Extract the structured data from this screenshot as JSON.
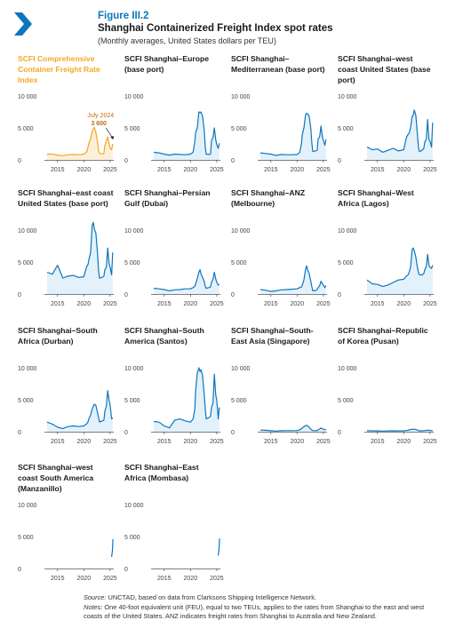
{
  "figure": {
    "label": "Figure III.2",
    "title": "Shanghai Containerized Freight Index spot rates",
    "subtitle": "(Monthly averages, United States dollars per TEU)"
  },
  "colors": {
    "accent": "#0e76bc",
    "highlight": "#f5a623",
    "annotation": "#c8671a",
    "fill": "#e3f1fa",
    "axis": "#555555"
  },
  "chart_data": [
    {
      "type": "area",
      "title_lines": [
        "SCFI Comprehensive",
        "Container Freight Rate",
        "Index"
      ],
      "highlight": true,
      "x": [
        2013,
        2014,
        2015,
        2016,
        2017,
        2018,
        2019,
        2020,
        2020.5,
        2020.83,
        2021,
        2021.3,
        2021.6,
        2021.83,
        2022,
        2022.3,
        2022.6,
        2022.83,
        2023,
        2023.5,
        2023.83,
        2024,
        2024.3,
        2024.55,
        2024.8,
        2025,
        2025.3,
        2025.5
      ],
      "y": [
        900,
        900,
        750,
        650,
        800,
        850,
        800,
        900,
        1200,
        2100,
        2700,
        3300,
        4500,
        4900,
        5100,
        4300,
        2800,
        1400,
        1000,
        950,
        1000,
        2200,
        3000,
        3600,
        2500,
        1800,
        1600,
        2500
      ],
      "xticks": [
        "2015",
        "2020",
        "2025"
      ],
      "xtick_values": [
        2015,
        2020,
        2025
      ],
      "yticks": [
        "0",
        "5 000",
        "10 000"
      ],
      "ytick_values": [
        0,
        5000,
        10000
      ],
      "ylim": [
        0,
        10000
      ],
      "xlim": [
        2012.5,
        2025.7
      ],
      "annotation": {
        "label": "July 2024",
        "value": "3 600",
        "x": 2024.55,
        "y": 3600
      }
    },
    {
      "type": "area",
      "title_lines": [
        "SCFI Shanghai–Europe",
        "(base port)"
      ],
      "x": [
        2013,
        2014,
        2015,
        2016,
        2017,
        2018,
        2019,
        2020,
        2020.5,
        2020.83,
        2021,
        2021.3,
        2021.6,
        2021.83,
        2022,
        2022.3,
        2022.6,
        2022.83,
        2023,
        2023.5,
        2023.83,
        2024,
        2024.3,
        2024.55,
        2024.8,
        2025,
        2025.3,
        2025.5
      ],
      "y": [
        1200,
        1100,
        900,
        750,
        900,
        850,
        800,
        900,
        1200,
        2800,
        4300,
        5000,
        7500,
        7400,
        7500,
        6800,
        4800,
        2000,
        900,
        850,
        900,
        3000,
        3500,
        5000,
        3200,
        2400,
        1800,
        2600
      ],
      "xticks": [
        "2015",
        "2020",
        "2025"
      ],
      "xtick_values": [
        2015,
        2020,
        2025
      ],
      "yticks": [
        "0",
        "5 000",
        "10 000"
      ],
      "ytick_values": [
        0,
        5000,
        10000
      ],
      "ylim": [
        0,
        10000
      ],
      "xlim": [
        2012.5,
        2025.7
      ]
    },
    {
      "type": "area",
      "title_lines": [
        "SCFI Shanghai–",
        "Mediterranean (base port)"
      ],
      "x": [
        2013,
        2014,
        2015,
        2016,
        2017,
        2018,
        2019,
        2020,
        2020.5,
        2020.83,
        2021,
        2021.3,
        2021.6,
        2021.83,
        2022,
        2022.3,
        2022.6,
        2022.83,
        2023,
        2023.5,
        2023.83,
        2024,
        2024.3,
        2024.55,
        2024.8,
        2025,
        2025.3,
        2025.5
      ],
      "y": [
        1100,
        1000,
        900,
        700,
        850,
        800,
        800,
        850,
        1200,
        2500,
        4000,
        5000,
        7000,
        7300,
        7200,
        6800,
        5000,
        2500,
        1300,
        1400,
        1500,
        3300,
        3600,
        5300,
        3700,
        3000,
        2300,
        3200
      ],
      "xticks": [
        "2015",
        "2020",
        "2025"
      ],
      "xtick_values": [
        2015,
        2020,
        2025
      ],
      "yticks": [
        "0",
        "5 000",
        "10 000"
      ],
      "ytick_values": [
        0,
        5000,
        10000
      ],
      "ylim": [
        0,
        10000
      ],
      "xlim": [
        2012.5,
        2025.7
      ]
    },
    {
      "type": "area",
      "title_lines": [
        "SCFI Shanghai–west",
        "coast United States (base",
        "port)"
      ],
      "x": [
        2013,
        2014,
        2015,
        2016,
        2017,
        2018,
        2019,
        2020,
        2020.5,
        2020.83,
        2021,
        2021.3,
        2021.6,
        2021.83,
        2022,
        2022.3,
        2022.6,
        2022.83,
        2023,
        2023.5,
        2023.83,
        2024,
        2024.3,
        2024.55,
        2024.8,
        2025,
        2025.3,
        2025.5
      ],
      "y": [
        2000,
        1600,
        1700,
        1200,
        1500,
        1800,
        1400,
        1600,
        3500,
        4000,
        4100,
        5000,
        6800,
        7000,
        7800,
        7000,
        4000,
        1800,
        1300,
        1500,
        1800,
        2800,
        3200,
        6300,
        3200,
        2900,
        2000,
        5800
      ],
      "xticks": [
        "2015",
        "2020",
        "2025"
      ],
      "xtick_values": [
        2015,
        2020,
        2025
      ],
      "yticks": [
        "0",
        "5 000",
        "10 000"
      ],
      "ytick_values": [
        0,
        5000,
        10000
      ],
      "ylim": [
        0,
        10000
      ],
      "xlim": [
        2012.5,
        2025.7
      ]
    },
    {
      "type": "area",
      "title_lines": [
        "SCFI Shanghai–east coast",
        "United States (base port)"
      ],
      "x": [
        2013,
        2014,
        2015,
        2016,
        2017,
        2018,
        2019,
        2020,
        2020.5,
        2020.83,
        2021,
        2021.3,
        2021.6,
        2021.83,
        2022,
        2022.3,
        2022.6,
        2022.83,
        2023,
        2023.5,
        2023.83,
        2024,
        2024.3,
        2024.55,
        2024.8,
        2025,
        2025.3,
        2025.5
      ],
      "y": [
        3400,
        3100,
        4500,
        2500,
        2800,
        2900,
        2600,
        2700,
        4200,
        4700,
        5500,
        6500,
        10800,
        11200,
        10200,
        9500,
        6500,
        3500,
        2500,
        2600,
        2800,
        3800,
        4200,
        7200,
        4800,
        4200,
        3000,
        6500
      ],
      "xticks": [
        "2015",
        "2020",
        "2025"
      ],
      "xtick_values": [
        2015,
        2020,
        2025
      ],
      "yticks": [
        "0",
        "5 000",
        "10 000"
      ],
      "ytick_values": [
        0,
        5000,
        10000
      ],
      "ylim": [
        0,
        10000
      ],
      "xlim": [
        2012.5,
        2025.7
      ]
    },
    {
      "type": "area",
      "title_lines": [
        "SCFI Shanghai–Persian",
        "Gulf (Dubai)"
      ],
      "x": [
        2013,
        2014,
        2015,
        2016,
        2017,
        2018,
        2019,
        2020,
        2020.5,
        2020.83,
        2021,
        2021.3,
        2021.6,
        2021.83,
        2022,
        2022.3,
        2022.6,
        2022.83,
        2023,
        2023.5,
        2023.83,
        2024,
        2024.3,
        2024.55,
        2024.8,
        2025,
        2025.3,
        2025.5
      ],
      "y": [
        900,
        800,
        700,
        500,
        650,
        700,
        800,
        800,
        1000,
        1200,
        1600,
        2400,
        3400,
        3800,
        3200,
        2600,
        2000,
        1200,
        900,
        1000,
        1100,
        1800,
        2300,
        3400,
        2400,
        1800,
        1400,
        1500
      ],
      "xticks": [
        "2015",
        "2020",
        "2025"
      ],
      "xtick_values": [
        2015,
        2020,
        2025
      ],
      "yticks": [
        "0",
        "5 000",
        "10 000"
      ],
      "ytick_values": [
        0,
        5000,
        10000
      ],
      "ylim": [
        0,
        10000
      ],
      "xlim": [
        2012.5,
        2025.7
      ]
    },
    {
      "type": "area",
      "title_lines": [
        "SCFI Shanghai–ANZ",
        "(Melbourne)"
      ],
      "x": [
        2013,
        2014,
        2015,
        2016,
        2017,
        2018,
        2019,
        2020,
        2020.5,
        2020.83,
        2021,
        2021.3,
        2021.6,
        2021.83,
        2022,
        2022.3,
        2022.6,
        2022.83,
        2023,
        2023.5,
        2023.83,
        2024,
        2024.3,
        2024.55,
        2024.8,
        2025,
        2025.3,
        2025.5
      ],
      "y": [
        700,
        600,
        400,
        500,
        650,
        700,
        750,
        800,
        1000,
        1100,
        1400,
        2200,
        3800,
        4400,
        3800,
        3200,
        2000,
        1100,
        500,
        550,
        700,
        1000,
        1300,
        2000,
        1600,
        1400,
        1000,
        1300
      ],
      "xticks": [
        "2015",
        "2020",
        "2025"
      ],
      "xtick_values": [
        2015,
        2020,
        2025
      ],
      "yticks": [
        "0",
        "5 000",
        "10 000"
      ],
      "ytick_values": [
        0,
        5000,
        10000
      ],
      "ylim": [
        0,
        10000
      ],
      "xlim": [
        2012.5,
        2025.7
      ]
    },
    {
      "type": "area",
      "title_lines": [
        "SCFI Shanghai–West",
        "Africa (Lagos)"
      ],
      "x": [
        2013,
        2014,
        2015,
        2016,
        2017,
        2018,
        2019,
        2020,
        2020.5,
        2020.83,
        2021,
        2021.3,
        2021.6,
        2021.83,
        2022,
        2022.3,
        2022.6,
        2022.83,
        2023,
        2023.5,
        2023.83,
        2024,
        2024.3,
        2024.55,
        2024.8,
        2025,
        2025.3,
        2025.5
      ],
      "y": [
        2200,
        1600,
        1500,
        1200,
        1400,
        1800,
        2200,
        2300,
        2800,
        3000,
        3300,
        4200,
        7000,
        7200,
        6800,
        5800,
        4200,
        3300,
        3000,
        3000,
        3200,
        3800,
        4300,
        6200,
        4500,
        4200,
        4000,
        4500
      ],
      "xticks": [
        "2015",
        "2020",
        "2025"
      ],
      "xtick_values": [
        2015,
        2020,
        2025
      ],
      "yticks": [
        "0",
        "5 000",
        "10 000"
      ],
      "ytick_values": [
        0,
        5000,
        10000
      ],
      "ylim": [
        0,
        10000
      ],
      "xlim": [
        2012.5,
        2025.7
      ]
    },
    {
      "type": "area",
      "title_lines": [
        "SCFI Shanghai–South",
        "Africa (Durban)"
      ],
      "x": [
        2013,
        2014,
        2015,
        2016,
        2017,
        2018,
        2019,
        2020,
        2020.5,
        2020.83,
        2021,
        2021.3,
        2021.6,
        2021.83,
        2022,
        2022.3,
        2022.6,
        2022.83,
        2023,
        2023.5,
        2023.83,
        2024,
        2024.3,
        2024.55,
        2024.8,
        2025,
        2025.3,
        2025.5
      ],
      "y": [
        1500,
        1200,
        700,
        500,
        800,
        900,
        800,
        900,
        1200,
        1600,
        2100,
        2600,
        3600,
        4000,
        4300,
        4100,
        3000,
        2200,
        1500,
        1700,
        1800,
        3200,
        4000,
        6400,
        5000,
        4200,
        2000,
        2200
      ],
      "xticks": [
        "2015",
        "2020",
        "2025"
      ],
      "xtick_values": [
        2015,
        2020,
        2025
      ],
      "yticks": [
        "0",
        "5 000",
        "10 000"
      ],
      "ytick_values": [
        0,
        5000,
        10000
      ],
      "ylim": [
        0,
        10000
      ],
      "xlim": [
        2012.5,
        2025.7
      ]
    },
    {
      "type": "area",
      "title_lines": [
        "SCFI Shanghai–South",
        "America (Santos)"
      ],
      "x": [
        2013,
        2014,
        2015,
        2016,
        2017,
        2018,
        2019,
        2020,
        2020.5,
        2020.83,
        2021,
        2021.3,
        2021.6,
        2021.83,
        2022,
        2022.3,
        2022.6,
        2022.83,
        2023,
        2023.5,
        2023.83,
        2024,
        2024.3,
        2024.55,
        2024.8,
        2025,
        2025.3,
        2025.5
      ],
      "y": [
        1600,
        1500,
        900,
        600,
        1800,
        2000,
        1700,
        1500,
        2000,
        3500,
        6500,
        9200,
        10000,
        9400,
        9700,
        8800,
        6000,
        3500,
        2000,
        2200,
        2400,
        3800,
        4500,
        9000,
        5800,
        5000,
        2000,
        3800
      ],
      "xticks": [
        "2015",
        "2020",
        "2025"
      ],
      "xtick_values": [
        2015,
        2020,
        2025
      ],
      "yticks": [
        "0",
        "5 000",
        "10 000"
      ],
      "ytick_values": [
        0,
        5000,
        10000
      ],
      "ylim": [
        0,
        10000
      ],
      "xlim": [
        2012.5,
        2025.7
      ]
    },
    {
      "type": "area",
      "title_lines": [
        "SCFI Shanghai–South-",
        "East Asia (Singapore)"
      ],
      "x": [
        2013,
        2014,
        2015,
        2016,
        2017,
        2018,
        2019,
        2020,
        2020.5,
        2020.83,
        2021,
        2021.3,
        2021.6,
        2021.83,
        2022,
        2022.3,
        2022.6,
        2022.83,
        2023,
        2023.5,
        2023.83,
        2024,
        2024.3,
        2024.55,
        2024.8,
        2025,
        2025.3,
        2025.5
      ],
      "y": [
        250,
        220,
        150,
        100,
        150,
        170,
        160,
        180,
        300,
        450,
        600,
        800,
        950,
        1000,
        900,
        700,
        400,
        250,
        180,
        170,
        200,
        300,
        400,
        600,
        450,
        400,
        300,
        350
      ],
      "xticks": [
        "2015",
        "2020",
        "2025"
      ],
      "xtick_values": [
        2015,
        2020,
        2025
      ],
      "yticks": [
        "0",
        "5 000",
        "10 000"
      ],
      "ytick_values": [
        0,
        5000,
        10000
      ],
      "ylim": [
        0,
        10000
      ],
      "xlim": [
        2012.5,
        2025.7
      ]
    },
    {
      "type": "area",
      "title_lines": [
        "SCFI Shanghai–Republic",
        "of Korea (Pusan)"
      ],
      "x": [
        2013,
        2014,
        2015,
        2016,
        2017,
        2018,
        2019,
        2020,
        2020.5,
        2020.83,
        2021,
        2021.3,
        2021.6,
        2021.83,
        2022,
        2022.3,
        2022.6,
        2022.83,
        2023,
        2023.5,
        2023.83,
        2024,
        2024.3,
        2024.55,
        2024.8,
        2025,
        2025.3,
        2025.5
      ],
      "y": [
        150,
        140,
        120,
        100,
        130,
        140,
        130,
        140,
        180,
        220,
        280,
        330,
        380,
        400,
        390,
        350,
        250,
        180,
        140,
        140,
        150,
        180,
        200,
        250,
        220,
        200,
        170,
        180
      ],
      "xticks": [
        "2015",
        "2020",
        "2025"
      ],
      "xtick_values": [
        2015,
        2020,
        2025
      ],
      "yticks": [
        "0",
        "5 000",
        "10 000"
      ],
      "ytick_values": [
        0,
        5000,
        10000
      ],
      "ylim": [
        0,
        10000
      ],
      "xlim": [
        2012.5,
        2025.7
      ]
    },
    {
      "type": "line",
      "title_lines": [
        "SCFI Shanghai–west",
        "coast South America",
        "(Manzanillo)"
      ],
      "x": [
        2025.3,
        2025.45,
        2025.55
      ],
      "y": [
        1800,
        2800,
        4600
      ],
      "xticks": [
        "2015",
        "2020",
        "2025"
      ],
      "xtick_values": [
        2015,
        2020,
        2025
      ],
      "yticks": [
        "0",
        "5 000",
        "10 000"
      ],
      "ytick_values": [
        0,
        5000,
        10000
      ],
      "ylim": [
        0,
        10000
      ],
      "xlim": [
        2012.5,
        2025.7
      ]
    },
    {
      "type": "line",
      "title_lines": [
        "SCFI Shanghai–East",
        "Africa (Mombasa)"
      ],
      "x": [
        2025.3,
        2025.45,
        2025.55
      ],
      "y": [
        2000,
        3200,
        4700
      ],
      "xticks": [
        "2015",
        "2020",
        "2025"
      ],
      "xtick_values": [
        2015,
        2020,
        2025
      ],
      "yticks": [
        "0",
        "5 000",
        "10 000"
      ],
      "ytick_values": [
        0,
        5000,
        10000
      ],
      "ylim": [
        0,
        10000
      ],
      "xlim": [
        2012.5,
        2025.7
      ]
    }
  ],
  "footer": {
    "source_label": "Source:",
    "source_text": " UNCTAD, based on data from Clarksons Shipping Intelligence Network.",
    "notes_label": "Notes:",
    "notes_text": " One 40-foot equivalent unit (FEU), equal to two TEUs, applies to the rates from Shanghai to the east and west coasts of the United States. ANZ indicates freight rates from Shanghai to Australia and New Zealand."
  }
}
